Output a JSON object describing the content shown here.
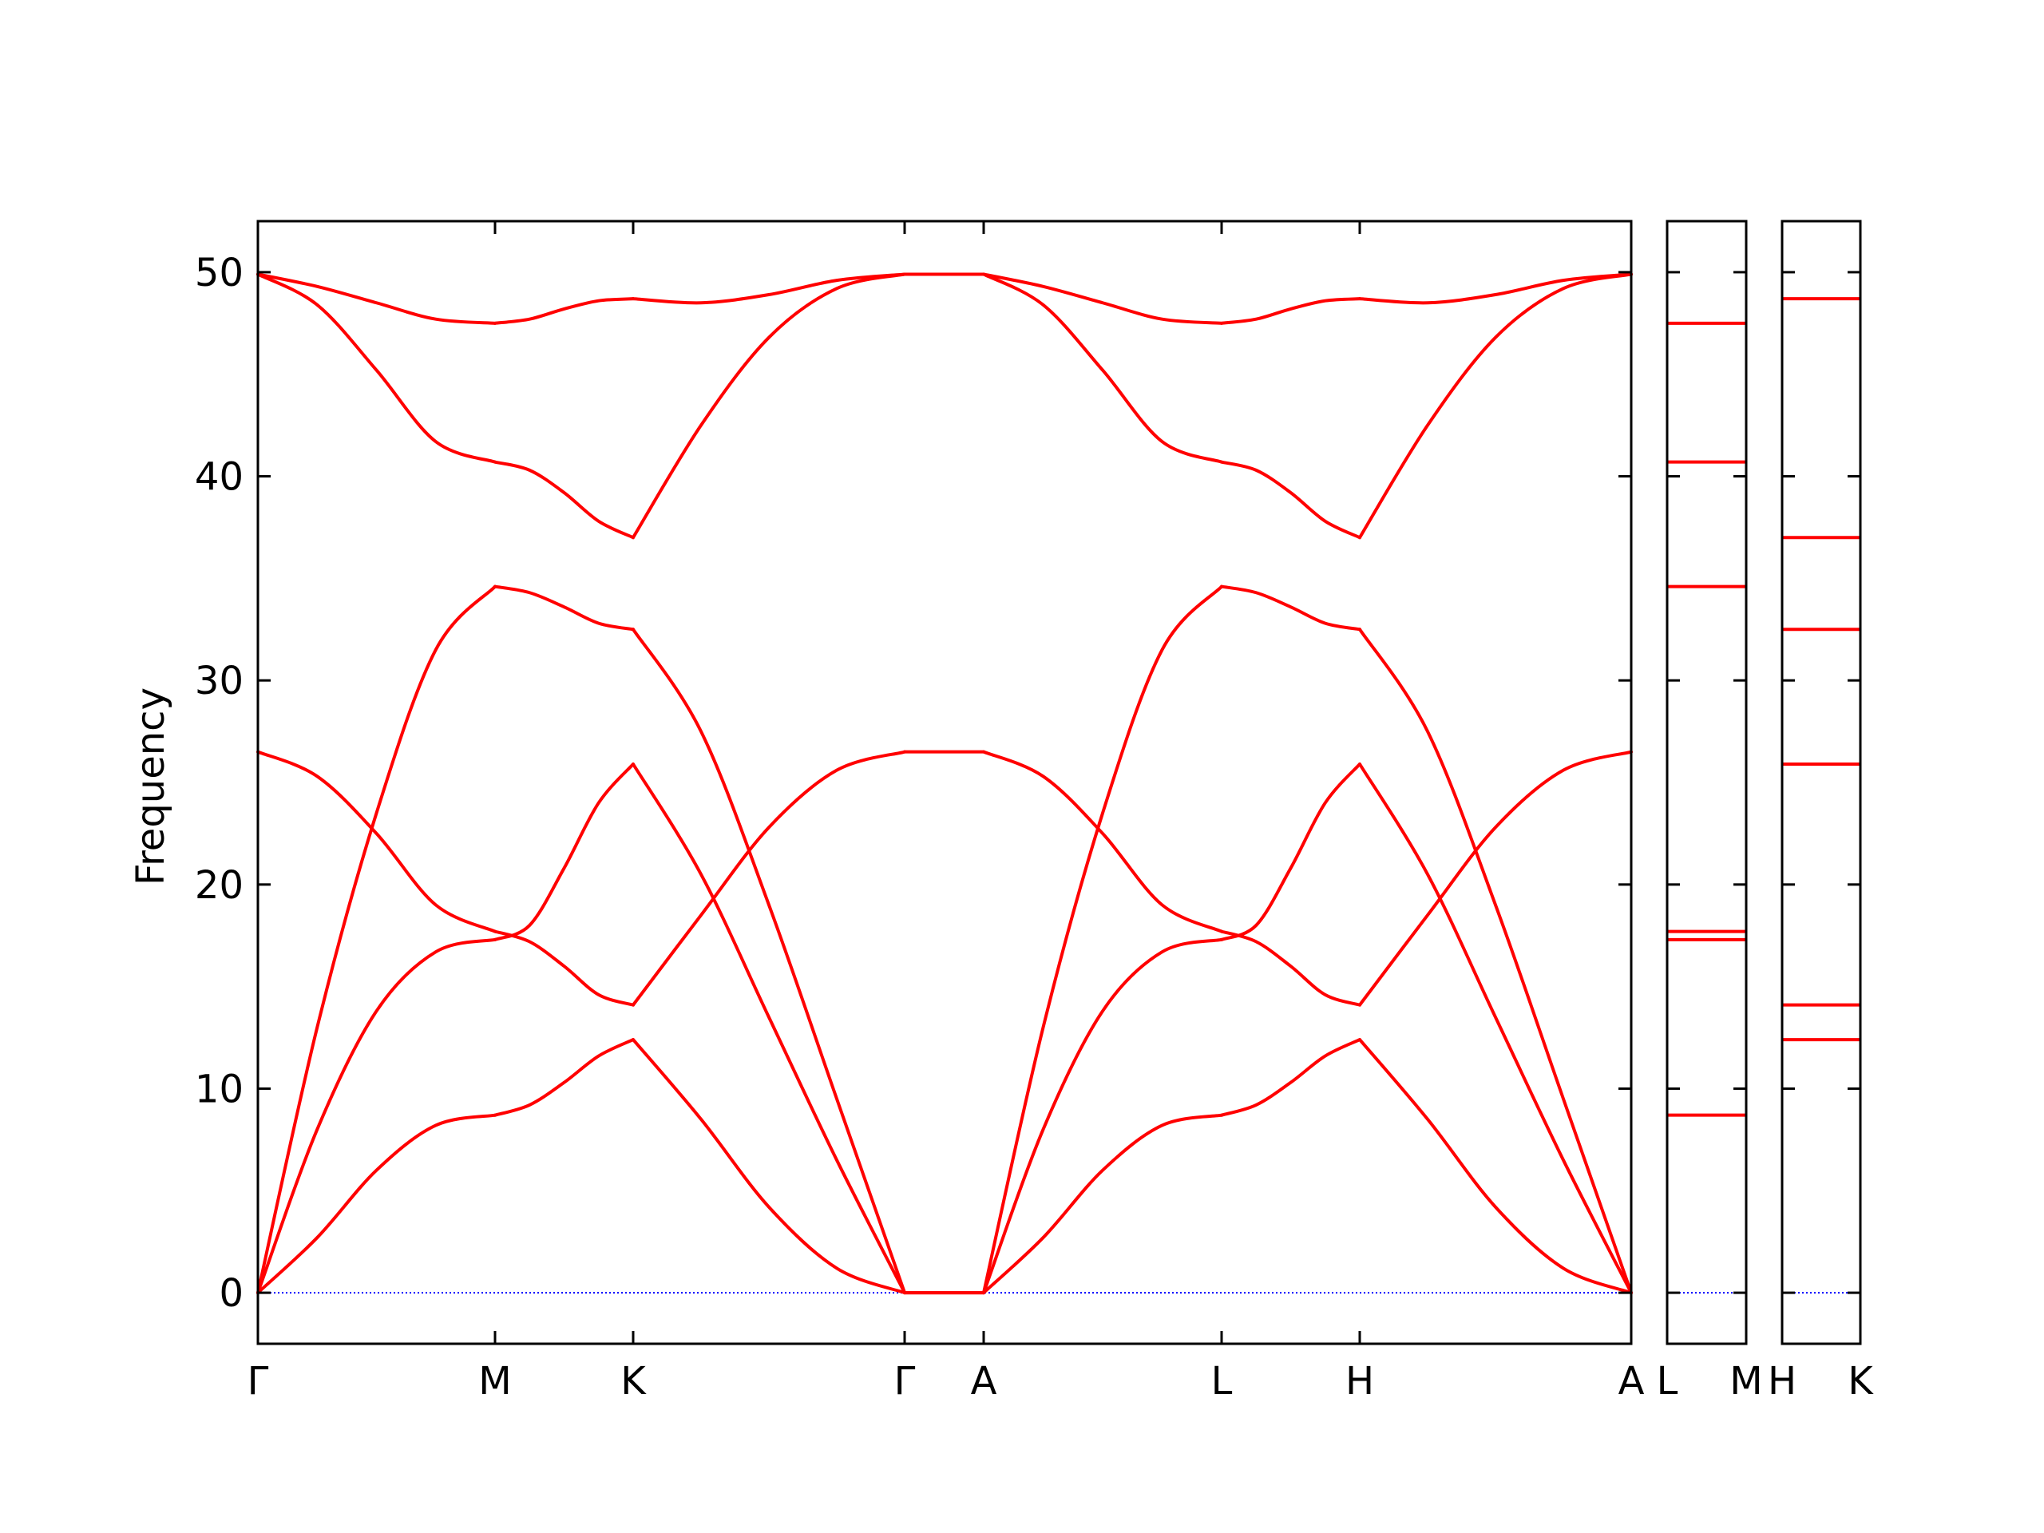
{
  "chart_data": {
    "type": "line",
    "ylabel": "Frequency",
    "ylim": [
      -2.5,
      52.5
    ],
    "yticks": [
      0,
      10,
      20,
      30,
      40,
      50
    ],
    "line_color": "#ff0000",
    "zero_line_color": "#0000ff",
    "main_panel": {
      "xticks": [
        "Γ",
        "M",
        "K",
        "Γ",
        "A",
        "L",
        "H",
        "A"
      ],
      "segments": [
        {
          "from": "Γ",
          "to": "M",
          "bands": [
            {
              "x": [
                0,
                0.25,
                0.5,
                0.75,
                1
              ],
              "y": [
                0,
                2.7,
                6.0,
                8.2,
                8.7
              ]
            },
            {
              "x": [
                0,
                0.25,
                0.5,
                0.75,
                1
              ],
              "y": [
                0,
                8.0,
                13.8,
                16.7,
                17.3
              ]
            },
            {
              "x": [
                0,
                0.25,
                0.5,
                0.75,
                1
              ],
              "y": [
                0,
                13.0,
                23.5,
                31.5,
                34.6
              ]
            },
            {
              "x": [
                0,
                0.25,
                0.5,
                0.75,
                1
              ],
              "y": [
                26.5,
                25.3,
                22.5,
                19.0,
                17.7
              ]
            },
            {
              "x": [
                0,
                0.25,
                0.5,
                0.75,
                1
              ],
              "y": [
                49.9,
                48.4,
                45.2,
                41.7,
                40.7
              ]
            },
            {
              "x": [
                0,
                0.25,
                0.5,
                0.75,
                1
              ],
              "y": [
                49.9,
                49.3,
                48.5,
                47.7,
                47.5
              ]
            }
          ]
        },
        {
          "from": "M",
          "to": "K",
          "bands": [
            {
              "x": [
                0,
                0.25,
                0.5,
                0.75,
                1
              ],
              "y": [
                8.7,
                9.2,
                10.3,
                11.6,
                12.4
              ]
            },
            {
              "x": [
                0,
                0.25,
                0.5,
                0.75,
                1
              ],
              "y": [
                17.3,
                18.0,
                20.8,
                24.0,
                25.9
              ]
            },
            {
              "x": [
                0,
                0.25,
                0.5,
                0.75,
                1
              ],
              "y": [
                34.6,
                34.3,
                33.6,
                32.8,
                32.5
              ]
            },
            {
              "x": [
                0,
                0.25,
                0.5,
                0.75,
                1
              ],
              "y": [
                17.7,
                17.2,
                16.0,
                14.6,
                14.1
              ]
            },
            {
              "x": [
                0,
                0.25,
                0.5,
                0.75,
                1
              ],
              "y": [
                40.7,
                40.3,
                39.2,
                37.8,
                37.0
              ]
            },
            {
              "x": [
                0,
                0.25,
                0.5,
                0.75,
                1
              ],
              "y": [
                47.5,
                47.7,
                48.2,
                48.6,
                48.7
              ]
            }
          ]
        },
        {
          "from": "K",
          "to": "Γ",
          "bands": [
            {
              "x": [
                0,
                0.25,
                0.5,
                0.75,
                1
              ],
              "y": [
                12.4,
                8.5,
                4.2,
                1.2,
                0
              ]
            },
            {
              "x": [
                0,
                0.25,
                0.5,
                0.75,
                1
              ],
              "y": [
                25.9,
                20.5,
                13.5,
                6.5,
                0
              ]
            },
            {
              "x": [
                0,
                0.25,
                0.5,
                0.75,
                1
              ],
              "y": [
                32.5,
                27.5,
                19.0,
                9.5,
                0
              ]
            },
            {
              "x": [
                0,
                0.25,
                0.5,
                0.75,
                1
              ],
              "y": [
                14.1,
                18.5,
                22.8,
                25.6,
                26.5
              ]
            },
            {
              "x": [
                0,
                0.25,
                0.5,
                0.75,
                1
              ],
              "y": [
                37.0,
                42.5,
                46.8,
                49.2,
                49.9
              ]
            },
            {
              "x": [
                0,
                0.25,
                0.5,
                0.75,
                1
              ],
              "y": [
                48.7,
                48.5,
                48.9,
                49.6,
                49.9
              ]
            }
          ]
        },
        {
          "from": "Γ",
          "to": "A",
          "bands": [
            {
              "x": [
                0,
                1
              ],
              "y": [
                0,
                0
              ]
            },
            {
              "x": [
                0,
                1
              ],
              "y": [
                0,
                0
              ]
            },
            {
              "x": [
                0,
                1
              ],
              "y": [
                26.5,
                26.5
              ]
            },
            {
              "x": [
                0,
                1
              ],
              "y": [
                49.9,
                49.9
              ]
            }
          ]
        },
        {
          "from": "A",
          "to": "L",
          "bands": [
            {
              "x": [
                0,
                0.25,
                0.5,
                0.75,
                1
              ],
              "y": [
                0,
                2.7,
                6.0,
                8.2,
                8.7
              ]
            },
            {
              "x": [
                0,
                0.25,
                0.5,
                0.75,
                1
              ],
              "y": [
                0,
                8.0,
                13.8,
                16.7,
                17.3
              ]
            },
            {
              "x": [
                0,
                0.25,
                0.5,
                0.75,
                1
              ],
              "y": [
                0,
                13.0,
                23.5,
                31.5,
                34.6
              ]
            },
            {
              "x": [
                0,
                0.25,
                0.5,
                0.75,
                1
              ],
              "y": [
                26.5,
                25.3,
                22.5,
                19.0,
                17.7
              ]
            },
            {
              "x": [
                0,
                0.25,
                0.5,
                0.75,
                1
              ],
              "y": [
                49.9,
                48.4,
                45.2,
                41.7,
                40.7
              ]
            },
            {
              "x": [
                0,
                0.25,
                0.5,
                0.75,
                1
              ],
              "y": [
                49.9,
                49.3,
                48.5,
                47.7,
                47.5
              ]
            }
          ]
        },
        {
          "from": "L",
          "to": "H",
          "bands": [
            {
              "x": [
                0,
                0.25,
                0.5,
                0.75,
                1
              ],
              "y": [
                8.7,
                9.2,
                10.3,
                11.6,
                12.4
              ]
            },
            {
              "x": [
                0,
                0.25,
                0.5,
                0.75,
                1
              ],
              "y": [
                17.3,
                18.0,
                20.8,
                24.0,
                25.9
              ]
            },
            {
              "x": [
                0,
                0.25,
                0.5,
                0.75,
                1
              ],
              "y": [
                34.6,
                34.3,
                33.6,
                32.8,
                32.5
              ]
            },
            {
              "x": [
                0,
                0.25,
                0.5,
                0.75,
                1
              ],
              "y": [
                17.7,
                17.2,
                16.0,
                14.6,
                14.1
              ]
            },
            {
              "x": [
                0,
                0.25,
                0.5,
                0.75,
                1
              ],
              "y": [
                40.7,
                40.3,
                39.2,
                37.8,
                37.0
              ]
            },
            {
              "x": [
                0,
                0.25,
                0.5,
                0.75,
                1
              ],
              "y": [
                47.5,
                47.7,
                48.2,
                48.6,
                48.7
              ]
            }
          ]
        },
        {
          "from": "H",
          "to": "A",
          "bands": [
            {
              "x": [
                0,
                0.25,
                0.5,
                0.75,
                1
              ],
              "y": [
                12.4,
                8.5,
                4.2,
                1.2,
                0
              ]
            },
            {
              "x": [
                0,
                0.25,
                0.5,
                0.75,
                1
              ],
              "y": [
                25.9,
                20.5,
                13.5,
                6.5,
                0
              ]
            },
            {
              "x": [
                0,
                0.25,
                0.5,
                0.75,
                1
              ],
              "y": [
                32.5,
                27.5,
                19.0,
                9.5,
                0
              ]
            },
            {
              "x": [
                0,
                0.25,
                0.5,
                0.75,
                1
              ],
              "y": [
                14.1,
                18.5,
                22.8,
                25.6,
                26.5
              ]
            },
            {
              "x": [
                0,
                0.25,
                0.5,
                0.75,
                1
              ],
              "y": [
                37.0,
                42.5,
                46.8,
                49.2,
                49.9
              ]
            },
            {
              "x": [
                0,
                0.25,
                0.5,
                0.75,
                1
              ],
              "y": [
                48.7,
                48.5,
                48.9,
                49.6,
                49.9
              ]
            }
          ]
        }
      ]
    },
    "side_panels": [
      {
        "left_label": "L",
        "right_label": "M",
        "levels": [
          47.5,
          40.7,
          34.6,
          17.7,
          17.3,
          8.7
        ]
      },
      {
        "left_label": "H",
        "right_label": "K",
        "levels": [
          48.7,
          37.0,
          32.5,
          25.9,
          14.1,
          12.4
        ]
      }
    ]
  }
}
